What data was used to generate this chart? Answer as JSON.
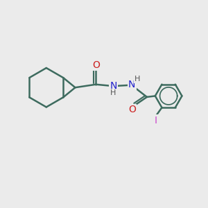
{
  "bg_color": "#ebebeb",
  "bond_color": "#3d6b5e",
  "N_color": "#2020cc",
  "O_color": "#cc2020",
  "I_color": "#cc44cc",
  "bond_width": 1.8,
  "fig_bg": "#ebebeb",
  "xlim": [
    0,
    10
  ],
  "ylim": [
    0,
    10
  ]
}
